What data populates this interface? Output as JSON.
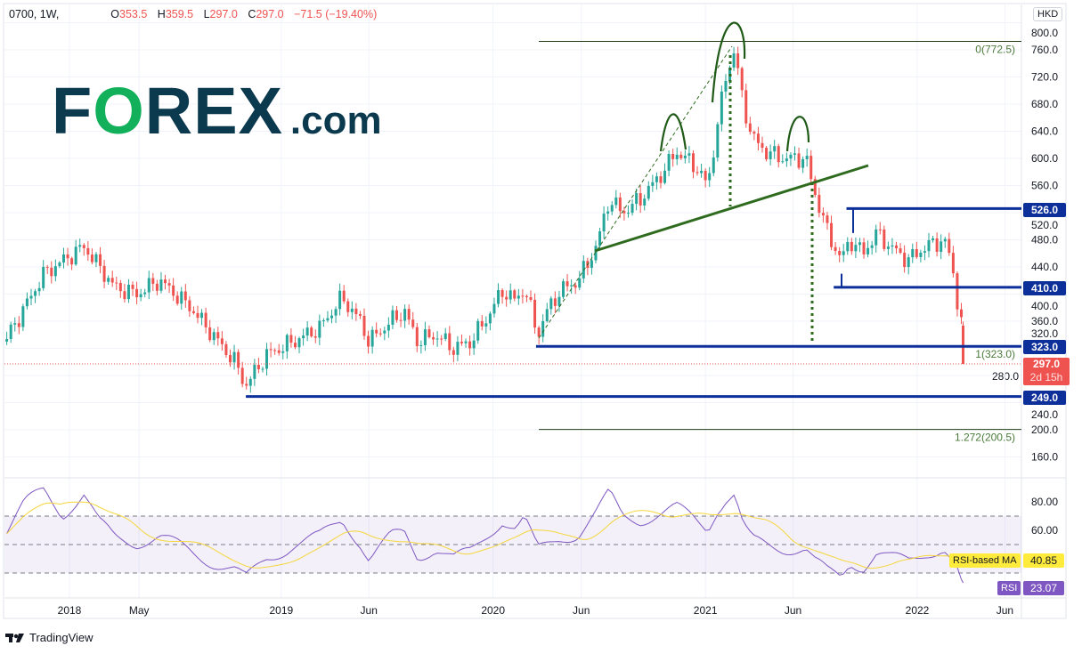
{
  "header": {
    "symbol": "0700, 1W,",
    "o_label": "O",
    "o": "353.5",
    "h_label": "H",
    "h": "359.5",
    "l_label": "L",
    "l": "297.0",
    "c_label": "C",
    "c": "297.0",
    "change": "−71.5 (−19.40%)"
  },
  "logo": {
    "text": "FOREX.com"
  },
  "branding": {
    "tradingview": "TradingView"
  },
  "currency": "HKD",
  "colors": {
    "up": "#26a69a",
    "down": "#ef5350",
    "level": "#0d2f9a",
    "trend": "#2e6b1f",
    "fib": "#1e3d14",
    "rsi": "#7e57c2",
    "rsi_ma": "#f5d63b",
    "logo_dark": "#0b3a4f",
    "logo_green": "#12b05a"
  },
  "chart_data": [
    {
      "type": "candlestick",
      "interval": "1W",
      "ylim": [
        140,
        810
      ],
      "yticks": [
        800,
        760,
        720,
        680,
        640,
        600,
        560,
        520,
        480,
        440,
        400,
        360,
        320,
        280,
        240,
        200,
        160
      ],
      "ytick_labels": [
        "800.0",
        "760.0",
        "720.0",
        "680.0",
        "640.0",
        "600.0",
        "560.0",
        "520.0",
        "480.0",
        "440.0",
        "400.0",
        "360.0",
        "320.0",
        "280.0",
        "240.0",
        "200.0",
        "160.0"
      ],
      "xticks": [
        {
          "date": "2018-01-01",
          "label": "2018"
        },
        {
          "date": "2018-05-01",
          "label": "May"
        },
        {
          "date": "2019-01-01",
          "label": "2019"
        },
        {
          "date": "2019-06-01",
          "label": "Jun"
        },
        {
          "date": "2020-01-01",
          "label": "2020"
        },
        {
          "date": "2020-06-01",
          "label": "Jun"
        },
        {
          "date": "2021-01-01",
          "label": "2021"
        },
        {
          "date": "2021-06-01",
          "label": "Jun"
        },
        {
          "date": "2022-01-01",
          "label": "2022"
        },
        {
          "date": "2022-06-01",
          "label": "Jun"
        }
      ],
      "grid": true,
      "approx_weekly_close": [
        [
          "2017-09-15",
          335
        ],
        [
          "2017-11-18",
          430
        ],
        [
          "2018-01-26",
          470
        ],
        [
          "2018-03-20",
          410
        ],
        [
          "2018-04-27",
          400
        ],
        [
          "2018-06-05",
          420
        ],
        [
          "2018-07-29",
          380
        ],
        [
          "2018-09-05",
          340
        ],
        [
          "2018-10-13",
          300
        ],
        [
          "2018-11-01",
          265
        ],
        [
          "2018-12-06",
          310
        ],
        [
          "2019-01-22",
          330
        ],
        [
          "2019-03-08",
          350
        ],
        [
          "2019-04-16",
          395
        ],
        [
          "2019-05-17",
          360
        ],
        [
          "2019-06-01",
          330
        ],
        [
          "2019-07-09",
          360
        ],
        [
          "2019-08-01",
          375
        ],
        [
          "2019-08-24",
          330
        ],
        [
          "2019-09-24",
          340
        ],
        [
          "2019-10-25",
          320
        ],
        [
          "2019-11-24",
          330
        ],
        [
          "2019-12-25",
          370
        ],
        [
          "2020-01-17",
          405
        ],
        [
          "2020-02-09",
          390
        ],
        [
          "2020-02-24",
          410
        ],
        [
          "2020-03-18",
          340
        ],
        [
          "2020-04-03",
          375
        ],
        [
          "2020-04-26",
          405
        ],
        [
          "2020-05-27",
          420
        ],
        [
          "2020-06-27",
          470
        ],
        [
          "2020-07-19",
          540
        ],
        [
          "2020-08-11",
          520
        ],
        [
          "2020-09-11",
          540
        ],
        [
          "2020-10-20",
          580
        ],
        [
          "2020-11-12",
          610
        ],
        [
          "2020-12-13",
          590
        ],
        [
          "2021-01-05",
          560
        ],
        [
          "2021-01-20",
          640
        ],
        [
          "2021-02-05",
          720
        ],
        [
          "2021-02-20",
          760
        ],
        [
          "2021-03-07",
          680
        ],
        [
          "2021-03-23",
          630
        ],
        [
          "2021-04-15",
          610
        ],
        [
          "2021-05-15",
          600
        ],
        [
          "2021-06-23",
          600
        ],
        [
          "2021-07-08",
          550
        ],
        [
          "2021-07-31",
          490
        ],
        [
          "2021-08-23",
          450
        ],
        [
          "2021-09-07",
          480
        ],
        [
          "2021-09-30",
          460
        ],
        [
          "2021-10-23",
          490
        ],
        [
          "2021-11-15",
          470
        ],
        [
          "2021-12-16",
          450
        ],
        [
          "2022-01-16",
          470
        ],
        [
          "2022-02-16",
          480
        ],
        [
          "2022-02-28",
          450
        ],
        [
          "2022-03-10",
          400
        ],
        [
          "2022-03-14",
          360
        ]
      ],
      "last_bar": {
        "date": "2022-03-21",
        "open": 353.5,
        "high": 359.5,
        "low": 297.0,
        "close": 297.0
      },
      "levels": [
        {
          "price": 526.0,
          "label": "526.0",
          "from": "2021-09-01"
        },
        {
          "price": 410.0,
          "label": "410.0",
          "from": "2021-08-10"
        },
        {
          "price": 323.0,
          "label": "323.0",
          "from": "2020-03-15"
        },
        {
          "price": 249.0,
          "label": "249.0",
          "from": "2018-11-01"
        }
      ],
      "fib": [
        {
          "level": "0",
          "price": 772.5,
          "label": "0(772.5)"
        },
        {
          "level": "1",
          "price": 323.0,
          "label": "1(323.0)"
        },
        {
          "level": "1.272",
          "price": 200.5,
          "label": "1.272(200.5)"
        }
      ],
      "current_price": {
        "label": "297.0",
        "countdown": "2d 15h"
      }
    },
    {
      "type": "line",
      "name": "RSI",
      "ylim": [
        12.5,
        97
      ],
      "yticks": [
        80,
        60,
        40,
        20
      ],
      "ytick_labels": [
        "80.00",
        "60.00",
        "40.00",
        "20.00"
      ],
      "bands": [
        30,
        50,
        70
      ],
      "approx_rsi": [
        [
          "2017-09-15",
          60
        ],
        [
          "2017-10-15",
          78
        ],
        [
          "2017-11-18",
          88
        ],
        [
          "2017-12-20",
          72
        ],
        [
          "2018-01-26",
          85
        ],
        [
          "2018-02-20",
          65
        ],
        [
          "2018-03-20",
          55
        ],
        [
          "2018-04-27",
          52
        ],
        [
          "2018-06-05",
          55
        ],
        [
          "2018-07-29",
          45
        ],
        [
          "2018-09-05",
          38
        ],
        [
          "2018-10-13",
          32
        ],
        [
          "2018-11-01",
          25
        ],
        [
          "2018-12-06",
          40
        ],
        [
          "2019-01-22",
          50
        ],
        [
          "2019-03-08",
          55
        ],
        [
          "2019-04-16",
          68
        ],
        [
          "2019-05-17",
          52
        ],
        [
          "2019-06-01",
          40
        ],
        [
          "2019-07-09",
          55
        ],
        [
          "2019-08-01",
          58
        ],
        [
          "2019-08-24",
          42
        ],
        [
          "2019-09-24",
          48
        ],
        [
          "2019-10-25",
          40
        ],
        [
          "2019-11-24",
          44
        ],
        [
          "2019-12-25",
          58
        ],
        [
          "2020-01-17",
          68
        ],
        [
          "2020-02-09",
          62
        ],
        [
          "2020-02-24",
          68
        ],
        [
          "2020-03-18",
          45
        ],
        [
          "2020-04-26",
          55
        ],
        [
          "2020-05-27",
          58
        ],
        [
          "2020-06-27",
          72
        ],
        [
          "2020-07-19",
          85
        ],
        [
          "2020-08-11",
          70
        ],
        [
          "2020-09-11",
          68
        ],
        [
          "2020-10-20",
          72
        ],
        [
          "2020-11-12",
          75
        ],
        [
          "2020-12-13",
          68
        ],
        [
          "2021-01-05",
          62
        ],
        [
          "2021-01-20",
          75
        ],
        [
          "2021-02-05",
          82
        ],
        [
          "2021-02-20",
          85
        ],
        [
          "2021-03-07",
          62
        ],
        [
          "2021-03-23",
          52
        ],
        [
          "2021-04-15",
          50
        ],
        [
          "2021-05-15",
          48
        ],
        [
          "2021-06-23",
          47
        ],
        [
          "2021-07-08",
          38
        ],
        [
          "2021-07-31",
          30
        ],
        [
          "2021-08-23",
          27
        ],
        [
          "2021-09-07",
          38
        ],
        [
          "2021-09-30",
          35
        ],
        [
          "2021-10-23",
          44
        ],
        [
          "2021-11-15",
          40
        ],
        [
          "2021-12-16",
          38
        ],
        [
          "2022-01-16",
          45
        ],
        [
          "2022-02-16",
          48
        ],
        [
          "2022-02-28",
          40
        ],
        [
          "2022-03-10",
          32
        ],
        [
          "2022-03-21",
          23.07
        ]
      ],
      "rsi_label": "RSI",
      "rsi_value": "23.07",
      "ma_label": "RSI-based MA",
      "ma_value": "40.85"
    }
  ]
}
